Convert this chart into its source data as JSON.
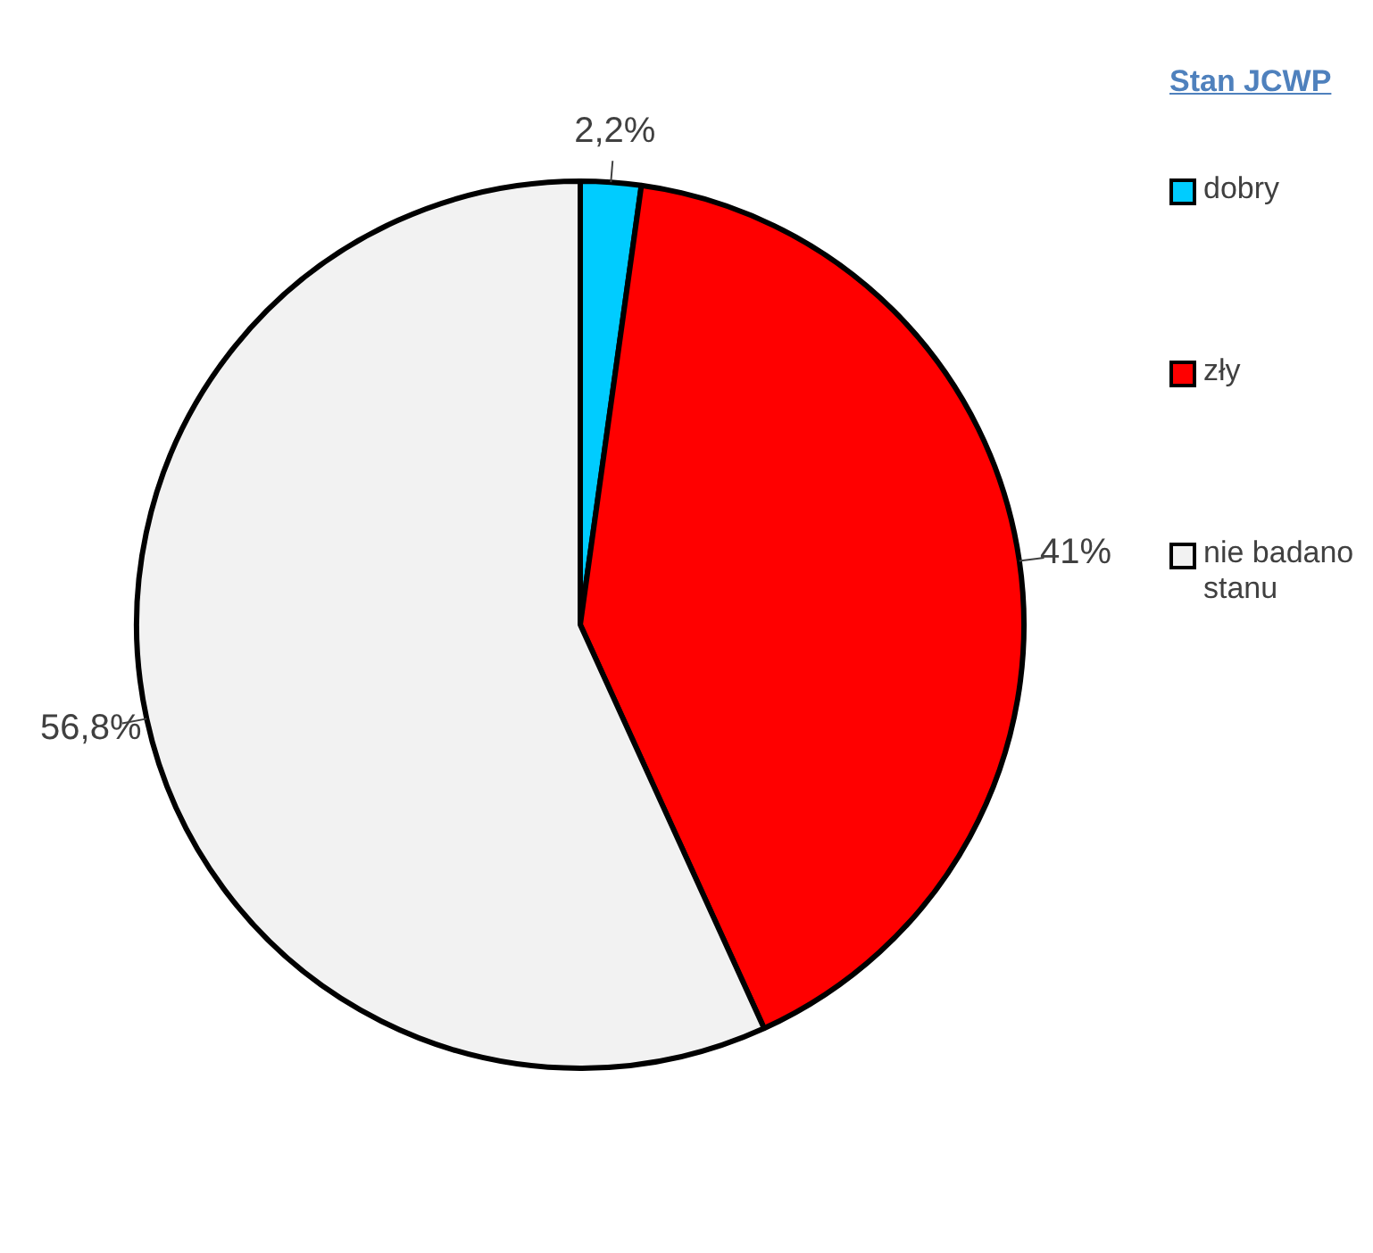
{
  "chart_data": {
    "type": "pie",
    "legend_title": "Stan JCWP",
    "legend": "right",
    "categories": [
      "dobry",
      "zły",
      "nie badano stanu"
    ],
    "values": [
      2.2,
      41,
      56.8
    ],
    "value_labels": [
      "2,2%",
      "41%",
      "56,8%"
    ],
    "colors": [
      "#00ccff",
      "#ff0000",
      "#f2f2f2"
    ]
  }
}
